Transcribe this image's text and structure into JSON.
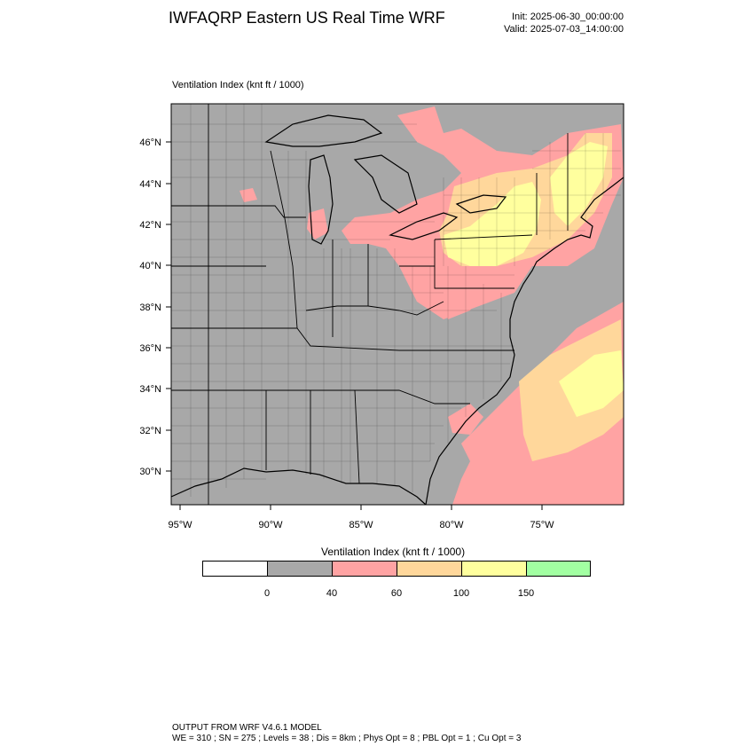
{
  "header": {
    "title": "IWFAQRP Eastern US Real Time WRF",
    "init": "Init: 2025-06-30_00:00:00",
    "valid": "Valid: 2025-07-03_14:00:00"
  },
  "plot": {
    "label": "Ventilation Index   (knt ft / 1000)",
    "lat_ticks": [
      "46°N",
      "44°N",
      "42°N",
      "40°N",
      "38°N",
      "36°N",
      "34°N",
      "32°N",
      "30°N"
    ],
    "lon_ticks": [
      "95°W",
      "90°W",
      "85°W",
      "80°W",
      "75°W"
    ]
  },
  "legend": {
    "title": "Ventilation Index  (knt ft / 1000)",
    "bins": [
      {
        "color": "#ffffff"
      },
      {
        "color": "#a8a8a8"
      },
      {
        "color": "#ffa3a3"
      },
      {
        "color": "#ffd79b"
      },
      {
        "color": "#ffff9e"
      },
      {
        "color": "#a2ffa2"
      }
    ],
    "labels": [
      "0",
      "40",
      "60",
      "100",
      "150"
    ]
  },
  "colors": {
    "water": "#a8a8a8",
    "land_low": "#a8a8a8",
    "pink": "#ffa3a3",
    "orange": "#ffd79b",
    "yellow": "#ffff9e"
  },
  "footer": {
    "line1": "OUTPUT FROM WRF V4.6.1 MODEL",
    "line2": "WE = 310 ; SN = 275 ; Levels = 38 ; Dis = 8km ; Phys Opt = 8 ; PBL Opt = 1 ; Cu Opt = 3"
  }
}
